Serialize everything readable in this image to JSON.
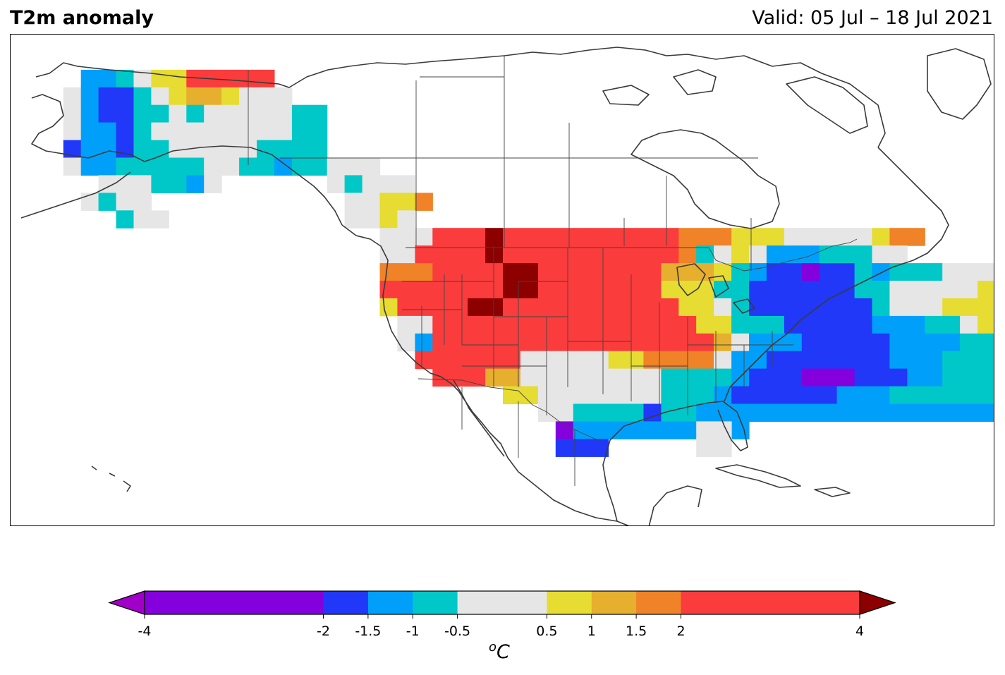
{
  "header": {
    "title": "T2m anomaly",
    "valid": "Valid: 05 Jul – 18 Jul 2021"
  },
  "colorbar": {
    "unit_sup": "o",
    "unit_main": "C",
    "ticks": [
      "-4",
      "-2",
      "-1.5",
      "-1",
      "-0.5",
      "0.5",
      "1",
      "1.5",
      "2",
      "4"
    ],
    "tick_values": [
      -4,
      -2,
      -1.5,
      -1,
      -0.5,
      0.5,
      1,
      1.5,
      2,
      4
    ],
    "bins": [
      {
        "min": -4,
        "max": -2,
        "color": "#8400dc"
      },
      {
        "min": -2,
        "max": -1.5,
        "color": "#2138f8"
      },
      {
        "min": -1.5,
        "max": -1,
        "color": "#00a0fa"
      },
      {
        "min": -1,
        "max": -0.5,
        "color": "#00c8c8"
      },
      {
        "min": -0.5,
        "max": 0.5,
        "color": "#e6e6e6"
      },
      {
        "min": 0.5,
        "max": 1,
        "color": "#e6dc32"
      },
      {
        "min": 1,
        "max": 1.5,
        "color": "#e6af2d"
      },
      {
        "min": 1.5,
        "max": 2,
        "color": "#f08228"
      },
      {
        "min": 2,
        "max": 4,
        "color": "#fa3c3c"
      }
    ],
    "under_color": "#a000c8",
    "over_color": "#8c0000"
  },
  "map": {
    "projection": "Plate Carree",
    "extent_lon": [
      -180,
      -40
    ],
    "extent_lat": [
      10,
      80
    ],
    "grid_spacing_deg": 2.5,
    "legend_codes": {
      "P": "purple (below -2)",
      "B": "blue (-2 to -1.5)",
      "A": "azure (-1.5 to -1)",
      "T": "teal (-1 to -0.5)",
      "G": "grey (-0.5 to 0.5)",
      "Y": "yellow (0.5 to 1)",
      "O": "gold (1 to 1.5)",
      "R": "orange (1.5 to 2)",
      "E": "red (2 to 4)",
      "D": "dark red (above 4)"
    },
    "grid_rows": [
      {
        "lat": 72.5,
        "lon_start": -170,
        "cells": "AATGYYEEEEE"
      },
      {
        "lat": 70,
        "lon_start": -172.5,
        "cells": "GABBTGYOOYGGG"
      },
      {
        "lat": 67.5,
        "lon_start": -172.5,
        "cells": "GABBTTGTGGGGGTT"
      },
      {
        "lat": 65,
        "lon_start": -172.5,
        "cells": "GAABTGGGGGGGGTT"
      },
      {
        "lat": 62.5,
        "lon_start": -172.5,
        "cells": "BAABTTGGGGGTTTT"
      },
      {
        "lat": 60,
        "lon_start": -172.5,
        "cells": "GAATTTTTGGTTATT"
      },
      {
        "lat": 60,
        "lon_start": -137.5,
        "cells": "TGGG"
      },
      {
        "lat": 57.5,
        "lon_start": -167.5,
        "cells": "GGGTTAG"
      },
      {
        "lat": 57.5,
        "lon_start": -135,
        "cells": "GTGGG"
      },
      {
        "lat": 55,
        "lon_start": -170,
        "cells": "GTGG"
      },
      {
        "lat": 55,
        "lon_start": -132.5,
        "cells": "GGYYR"
      },
      {
        "lat": 52.5,
        "lon_start": -165,
        "cells": "TGG"
      },
      {
        "lat": 52.5,
        "lon_start": -132.5,
        "cells": "GGYG"
      },
      {
        "lat": 50,
        "lon_start": -127.5,
        "cells": "GGGEEEDEEEEEEEEEERRRYYYGGGGGYRR"
      },
      {
        "lat": 47.5,
        "lon_start": -127.5,
        "cells": "GGEEEEDEEEEEEEEEERTGYGAAATTTGG"
      },
      {
        "lat": 45,
        "lon_start": -127.5,
        "cells": "RRREEEEDDEEEEEEEOOOYTABBPBBTATTTGGGGGTGGTTTTG"
      },
      {
        "lat": 42.5,
        "lon_start": -127.5,
        "cells": "EEEEEEEDDEEEEEEEYYYTTBBBBBBTTGGGGGYYYYGGGGGY"
      },
      {
        "lat": 40,
        "lon_start": -127.5,
        "cells": "YEEEEDDEEEEEEEEEEYYGTBBBBBBBTGGGYYYYYYGGGG"
      },
      {
        "lat": 37.5,
        "lon_start": -125,
        "cells": "GGEEEEEEEEEEEEEEEYYTTTBBBBBAAATTGYYYYRGG"
      },
      {
        "lat": 35,
        "lon_start": -125,
        "cells": "GAEEEEEEEEEEEEEEEEOGAAABBBBBAAAATTGGGGYYYY"
      },
      {
        "lat": 32.5,
        "lon_start": -122.5,
        "cells": "EEEEEEGGGGGYYRRRRGAABBBBBBBAAATTTTTGGGGG"
      },
      {
        "lat": 30,
        "lon_start": -120,
        "cells": "EEEOOGGGGGGGGTTTTABBBPPPBBBAATTTTTTTATGG"
      },
      {
        "lat": 27.5,
        "lon_start": -110,
        "cells": "YYGGGGGGGTTTABBBBBBAAATTTTTTAATAAATTTTGG"
      },
      {
        "lat": 25,
        "lon_start": -105,
        "cells": "GGTTTTBTTAAAAAAAAAAAAAAAAAAATGG"
      },
      {
        "lat": 22.5,
        "lon_start": -102.5,
        "cells": "PAAAAAAAAAA"
      },
      {
        "lat": 22.5,
        "lon_start": -82.5,
        "cells": "GG"
      },
      {
        "lat": 20,
        "lon_start": -102.5,
        "cells": "BBB"
      },
      {
        "lat": 20,
        "lon_start": -82.5,
        "cells": "GG"
      }
    ]
  }
}
